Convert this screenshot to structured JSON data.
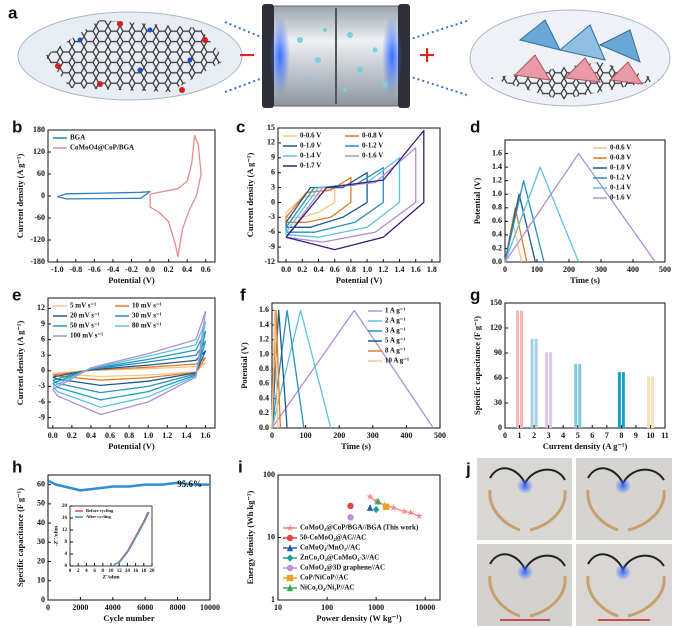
{
  "illustrations": [
    {
      "panel": "a",
      "signs": [
        "−",
        "+"
      ]
    },
    {
      "panel": "j"
    }
  ],
  "chart_data": [
    {
      "type": "line",
      "panel": "b",
      "x_label": "Potential (V)",
      "y_label": "Current density (A g⁻¹)",
      "xlim": [
        -1.1,
        0.7
      ],
      "xticks": [
        {
          "value": -1,
          "label": "-1.0"
        },
        -0.8,
        -0.6,
        -0.4,
        -0.2,
        {
          "value": 0,
          "label": "0.0"
        },
        0.2,
        0.4,
        0.6
      ],
      "ylim": [
        -180,
        180
      ],
      "yticks": [
        -180,
        -120,
        -60,
        0,
        60,
        120,
        180
      ],
      "legend": "upper left",
      "series": [
        {
          "name": "BGA",
          "color": "#2b7fc0",
          "x": [
            -1.0,
            -0.9,
            -0.5,
            -0.1,
            0.0,
            -0.1,
            -0.5,
            -0.9,
            -1.0
          ],
          "values": [
            -2,
            6,
            8,
            10,
            12,
            -6,
            -7,
            -8,
            -2
          ]
        },
        {
          "name": "CoMoO4@CoP/BGA",
          "color": "#e88a8a",
          "x": [
            0,
            0.1,
            0.2,
            0.3,
            0.4,
            0.45,
            0.48,
            0.52,
            0.55,
            0.5,
            0.42,
            0.35,
            0.3,
            0.27,
            0.2,
            0.1,
            0,
            0
          ],
          "values": [
            5,
            10,
            15,
            20,
            40,
            90,
            165,
            140,
            60,
            0,
            -40,
            -90,
            -165,
            -130,
            -70,
            -45,
            -30,
            5
          ]
        }
      ]
    },
    {
      "type": "line",
      "panel": "c",
      "x_label": "Potential (V)",
      "y_label": "Current density (A g⁻¹)",
      "xlim": [
        -0.1,
        1.9
      ],
      "xticks": [
        {
          "value": 0,
          "label": "0.0"
        },
        0.2,
        0.4,
        0.6,
        0.8,
        {
          "value": 1,
          "label": "1.0"
        },
        1.2,
        1.4,
        1.6,
        1.8
      ],
      "ylim": [
        -12,
        15
      ],
      "yticks": [
        -12,
        -9,
        -6,
        -3,
        0,
        3,
        6,
        9,
        12,
        15
      ],
      "legend": "upper left",
      "legend_columns": 2,
      "series": [
        {
          "name": "0-0.6 V",
          "color": "#f6c58a",
          "x": [
            0,
            0.2,
            0.4,
            0.6,
            0.6,
            0.4,
            0.2,
            0,
            0
          ],
          "values": [
            -2,
            1,
            1.5,
            3,
            0,
            -2,
            -3,
            -3,
            -2
          ]
        },
        {
          "name": "0-0.8 V",
          "color": "#e47b24",
          "x": [
            0,
            0.25,
            0.55,
            0.8,
            0.8,
            0.55,
            0.25,
            0,
            0
          ],
          "values": [
            -3,
            2,
            2.5,
            5,
            0,
            -3,
            -4,
            -4,
            -3
          ]
        },
        {
          "name": "0-1.0 V",
          "color": "#1d5a8a",
          "x": [
            0,
            0.3,
            0.7,
            1.0,
            1.0,
            0.7,
            0.3,
            0,
            0
          ],
          "values": [
            -4,
            3,
            3,
            6,
            0,
            -3,
            -5,
            -5,
            -4
          ]
        },
        {
          "name": "0-1.2 V",
          "color": "#2a8fc4",
          "x": [
            0,
            0.35,
            0.85,
            1.2,
            1.2,
            0.85,
            0.35,
            0,
            0
          ],
          "values": [
            -5,
            3,
            3.5,
            7,
            0,
            -4,
            -6,
            -6,
            -5
          ]
        },
        {
          "name": "0-1.4 V",
          "color": "#5cc3df",
          "x": [
            0,
            0.4,
            1.0,
            1.4,
            1.4,
            1.0,
            0.4,
            0,
            0
          ],
          "values": [
            -6,
            3,
            4,
            9,
            0,
            -5,
            -7,
            -6.5,
            -6
          ]
        },
        {
          "name": "0-1.6 V",
          "color": "#b08fd8",
          "x": [
            0,
            0.45,
            1.1,
            1.6,
            1.6,
            1.1,
            0.45,
            0,
            0
          ],
          "values": [
            -7,
            3,
            4,
            11,
            0,
            -6,
            -8,
            -7,
            -7
          ]
        },
        {
          "name": "0-1.7 V",
          "color": "#3c1a78",
          "x": [
            0,
            0.5,
            1.2,
            1.7,
            1.7,
            1.2,
            0.6,
            0,
            0
          ],
          "values": [
            -7,
            3,
            4.5,
            14.5,
            0,
            -7,
            -9.5,
            -7,
            -7
          ]
        }
      ]
    },
    {
      "type": "line",
      "panel": "d",
      "x_label": "Time (s)",
      "y_label": "Potential (V)",
      "xlim": [
        0,
        500
      ],
      "xticks": [
        0,
        100,
        200,
        300,
        400,
        500
      ],
      "ylim": [
        0,
        1.8
      ],
      "yticks": [
        {
          "value": 0,
          "label": "0.0"
        },
        0.2,
        0.4,
        0.6,
        0.8,
        {
          "value": 1,
          "label": "1.0"
        },
        1.2,
        1.4,
        1.6
      ],
      "legend": "upper right",
      "series": [
        {
          "name": "0-0.6 V",
          "color": "#f6c58a",
          "x": [
            0,
            24,
            52
          ],
          "values": [
            0,
            0.6,
            0
          ]
        },
        {
          "name": "0-0.8 V",
          "color": "#e47b24",
          "x": [
            0,
            32,
            68
          ],
          "values": [
            0,
            0.8,
            0
          ]
        },
        {
          "name": "0-1.0 V",
          "color": "#1d5a8a",
          "x": [
            0,
            44,
            95
          ],
          "values": [
            0,
            1.0,
            0
          ]
        },
        {
          "name": "0-1.2 V",
          "color": "#2a8fc4",
          "x": [
            0,
            58,
            122
          ],
          "values": [
            0,
            1.2,
            0
          ]
        },
        {
          "name": "0-1.4 V",
          "color": "#5cc3df",
          "x": [
            0,
            110,
            230
          ],
          "values": [
            0,
            1.4,
            0
          ]
        },
        {
          "name": "0-1.6 V",
          "color": "#b08fd8",
          "x": [
            0,
            230,
            470
          ],
          "values": [
            0,
            1.6,
            0
          ]
        }
      ]
    },
    {
      "type": "line",
      "panel": "e",
      "x_label": "Potential (V)",
      "y_label": "Current density (A g⁻¹)",
      "xlim": [
        -0.05,
        1.7
      ],
      "xticks": [
        {
          "value": 0,
          "label": "0.0"
        },
        0.2,
        0.4,
        0.6,
        0.8,
        {
          "value": 1,
          "label": "1.0"
        },
        1.2,
        1.4,
        1.6
      ],
      "ylim": [
        -11,
        14
      ],
      "yticks": [
        -9,
        -6,
        -3,
        0,
        3,
        6,
        9,
        12
      ],
      "legend": "upper left",
      "legend_columns": 2,
      "series": [
        {
          "name": "5 mV s⁻¹",
          "color": "#f6c58a",
          "x": [
            0,
            0.4,
            1.0,
            1.5,
            1.6,
            1.5,
            1.0,
            0.5,
            0.05,
            0
          ],
          "values": [
            -0.5,
            0.1,
            0.4,
            0.8,
            1.5,
            -0.2,
            -0.8,
            -1.1,
            -0.6,
            -0.5
          ]
        },
        {
          "name": "10 mV s⁻¹",
          "color": "#e47b24",
          "x": [
            0,
            0.4,
            1.0,
            1.5,
            1.6,
            1.5,
            1.0,
            0.5,
            0.05,
            0
          ],
          "values": [
            -0.8,
            0.1,
            0.7,
            1.3,
            2.5,
            -0.3,
            -1.3,
            -1.8,
            -1.0,
            -0.8
          ]
        },
        {
          "name": "20 mV s⁻¹",
          "color": "#1d5a8a",
          "x": [
            0,
            0.4,
            1.0,
            1.5,
            1.6,
            1.5,
            1.0,
            0.5,
            0.05,
            0
          ],
          "values": [
            -1.2,
            0.2,
            1.1,
            2,
            3.8,
            -0.4,
            -2,
            -2.8,
            -1.6,
            -1.2
          ]
        },
        {
          "name": "30 mV s⁻¹",
          "color": "#2a8fc4",
          "x": [
            0,
            0.4,
            1.0,
            1.5,
            1.6,
            1.5,
            1.0,
            0.5,
            0.05,
            0
          ],
          "values": [
            -1.8,
            0.3,
            1.7,
            3,
            5.7,
            -0.6,
            -3,
            -4.2,
            -2.4,
            -1.8
          ]
        },
        {
          "name": "50 mV s⁻¹",
          "color": "#1f9fb8",
          "x": [
            0,
            0.4,
            1.0,
            1.5,
            1.6,
            1.5,
            1.0,
            0.5,
            0.05,
            0
          ],
          "values": [
            -2.4,
            0.4,
            2.2,
            4,
            7.6,
            -0.8,
            -4,
            -5.6,
            -3.2,
            -2.4
          ]
        },
        {
          "name": "80 mV s⁻¹",
          "color": "#5cc3df",
          "x": [
            0,
            0.4,
            1.0,
            1.5,
            1.6,
            1.5,
            1.0,
            0.5,
            0.05,
            0
          ],
          "values": [
            -3,
            0.5,
            2.8,
            5,
            9.5,
            -1,
            -5,
            -7,
            -4,
            -3
          ]
        },
        {
          "name": "100 mV s⁻¹",
          "color": "#b08fd8",
          "x": [
            0,
            0.4,
            1.0,
            1.5,
            1.6,
            1.5,
            1.0,
            0.5,
            0.05,
            0
          ],
          "values": [
            -3.6,
            0.6,
            3.3,
            6,
            11.4,
            -1.2,
            -6,
            -8.4,
            -4.8,
            -3.6
          ]
        }
      ]
    },
    {
      "type": "line",
      "panel": "f",
      "x_label": "Time (s)",
      "y_label": "Potential (V)",
      "xlim": [
        0,
        500
      ],
      "xticks": [
        0,
        100,
        200,
        300,
        400,
        500
      ],
      "ylim": [
        0,
        1.7
      ],
      "yticks": [
        {
          "value": 0,
          "label": "0.0"
        },
        0.2,
        0.4,
        0.6,
        0.8,
        {
          "value": 1,
          "label": "1.0"
        },
        1.2,
        1.4,
        1.6
      ],
      "legend": "upper right",
      "series": [
        {
          "name": "1 A g⁻¹",
          "color": "#b08fd8",
          "x": [
            0,
            245,
            480
          ],
          "values": [
            0,
            1.6,
            0
          ]
        },
        {
          "name": "2 A g⁻¹",
          "color": "#5cc3df",
          "x": [
            0,
            85,
            175
          ],
          "values": [
            0,
            1.6,
            0
          ]
        },
        {
          "name": "3 A g⁻¹",
          "color": "#2a8fc4",
          "x": [
            0,
            45,
            95
          ],
          "values": [
            0,
            1.6,
            0
          ]
        },
        {
          "name": "5 A g⁻¹",
          "color": "#1d5a8a",
          "x": [
            0,
            20,
            45
          ],
          "values": [
            0,
            1.6,
            0
          ]
        },
        {
          "name": "8 A g⁻¹",
          "color": "#e47b24",
          "x": [
            0,
            12,
            25
          ],
          "values": [
            0,
            1.6,
            0
          ]
        },
        {
          "name": "10 A g⁻¹",
          "color": "#f6c58a",
          "x": [
            0,
            8,
            17
          ],
          "values": [
            0,
            1.6,
            0
          ]
        }
      ]
    },
    {
      "type": "bar",
      "panel": "g",
      "x_label": "Current density (A g⁻¹)",
      "y_label": "Specific capacitance (F g⁻¹)",
      "xlim": [
        0,
        11
      ],
      "xticks": [
        0,
        1,
        2,
        3,
        4,
        5,
        6,
        7,
        8,
        9,
        10,
        11
      ],
      "ylim": [
        0,
        150
      ],
      "yticks": [
        0,
        30,
        60,
        90,
        120,
        150
      ],
      "x": [
        1,
        2,
        3,
        5,
        8,
        10
      ],
      "values": [
        141,
        107,
        91,
        77,
        67,
        62
      ],
      "colors": [
        "#f7b6b6",
        "#a9cfe8",
        "#d9c9ee",
        "#7fc8d8",
        "#1c9fbf",
        "#fbe0b8"
      ]
    },
    {
      "type": "line",
      "panel": "h",
      "x_label": "Cycle number",
      "y_label": "Specific capacitance (F g⁻¹)",
      "annotation": "95.6%",
      "xlim": [
        0,
        10000
      ],
      "xticks": [
        0,
        2000,
        4000,
        6000,
        8000,
        10000
      ],
      "ylim": [
        0,
        65
      ],
      "yticks": [
        0,
        10,
        20,
        30,
        40,
        50,
        60
      ],
      "x": [
        0,
        500,
        1000,
        2000,
        3000,
        4000,
        5000,
        6000,
        7000,
        8000,
        9000,
        10000
      ],
      "series": [
        {
          "color": "#2b8fd6",
          "values": [
            62,
            60,
            59,
            57,
            58,
            59,
            59,
            60,
            60,
            61,
            60,
            60
          ]
        }
      ]
    },
    {
      "type": "line",
      "x_label": "Z'/ohm",
      "y_label": "-Z''/ohm",
      "xlim": [
        0,
        20
      ],
      "xticks": [
        0,
        2,
        4,
        6,
        8,
        10,
        12,
        14,
        16,
        18,
        20
      ],
      "ylim": [
        0,
        20
      ],
      "yticks": [
        0,
        4,
        8,
        12,
        16,
        20
      ],
      "legend": "upper left",
      "series": [
        {
          "name": "Before cycling",
          "color": "#e24a4a",
          "x": [
            10.5,
            11,
            11.5,
            12,
            14,
            16,
            18,
            19
          ],
          "values": [
            0,
            0.8,
            1,
            1.5,
            5,
            10,
            15,
            18
          ]
        },
        {
          "name": "After cycling",
          "color": "#2b8fd6",
          "x": [
            10.6,
            11.2,
            11.8,
            12.3,
            14.3,
            16.3,
            18.3,
            19.3
          ],
          "values": [
            0,
            0.8,
            1,
            1.5,
            5,
            10,
            15,
            18
          ]
        }
      ]
    },
    {
      "type": "scatter",
      "panel": "i",
      "x_label": "Power density (W kg⁻¹)",
      "y_label": "Energy density (Wh kg⁻¹)",
      "xscale": "log",
      "yscale": "log",
      "xlim": [
        10,
        20000
      ],
      "xticks": [
        10,
        100,
        1000,
        10000
      ],
      "ylim": [
        1,
        100
      ],
      "yticks": [
        1,
        10,
        100
      ],
      "legend": "lower left",
      "series": [
        {
          "name": "CoMoO₄@CoP/BGA//BGA (This work)",
          "color": "#f08a8a",
          "marker": "star",
          "x": [
            750,
            1000,
            1500,
            2250,
            3750,
            5000,
            7500
          ],
          "values": [
            45,
            38,
            33,
            30,
            26,
            25,
            22
          ]
        },
        {
          "name": "50-CoMoO₄@AC//AC",
          "color": "#e04545",
          "marker": "circle",
          "x": [
            300
          ],
          "values": [
            32
          ]
        },
        {
          "name": "CoMoO₄/MnO₂//AC",
          "color": "#2a5db0",
          "marker": "triangle",
          "x": [
            750
          ],
          "values": [
            30
          ]
        },
        {
          "name": "ZnCo₂O₄@CoMoO₄-3//AC",
          "color": "#1e9e8e",
          "marker": "diamond",
          "x": [
            1000
          ],
          "values": [
            28
          ]
        },
        {
          "name": "CoMoO₄@3D graphene//AC",
          "color": "#c08ee0",
          "marker": "circle",
          "x": [
            300
          ],
          "values": [
            21
          ]
        },
        {
          "name": "CoP/NiCoP//AC",
          "color": "#f0a020",
          "marker": "square",
          "x": [
            1600
          ],
          "values": [
            31
          ]
        },
        {
          "name": "NiCo₂O₄/Ni₃P//AC",
          "color": "#3aa84a",
          "marker": "triangle",
          "x": [
            1100
          ],
          "values": [
            38
          ]
        }
      ]
    }
  ]
}
